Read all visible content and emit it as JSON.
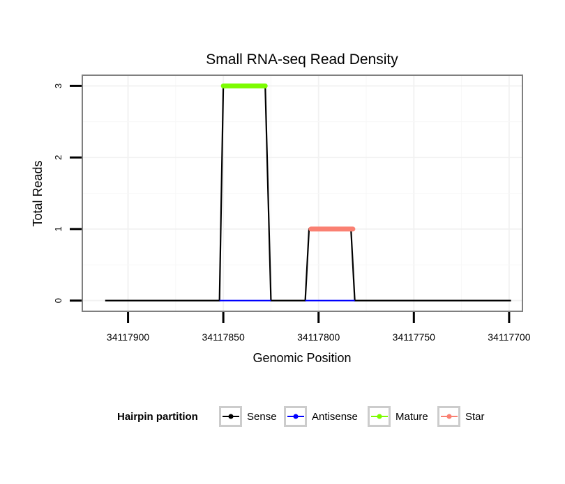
{
  "chart_data": {
    "type": "line",
    "title": "Small RNA-seq Read Density",
    "xlabel": "Genomic Position",
    "ylabel": "Total Reads",
    "x_reversed": true,
    "xlim": [
      34117924,
      34117693
    ],
    "ylim": [
      -0.15,
      3.15
    ],
    "x_ticks": [
      34117900,
      34117850,
      34117800,
      34117750,
      34117700
    ],
    "x_tick_labels": [
      "34117900",
      "34117850",
      "34117800",
      "34117750",
      "34117700"
    ],
    "y_ticks": [
      0,
      1,
      2,
      3
    ],
    "y_tick_labels": [
      "0",
      "1",
      "2",
      "3"
    ],
    "grid": true,
    "legend_position": "bottom",
    "legend_title": "Hairpin partition",
    "series": [
      {
        "name": "Sense",
        "color": "#000000",
        "x": [
          34117912,
          34117852,
          34117850,
          34117828,
          34117825,
          34117807,
          34117805,
          34117783,
          34117781,
          34117699
        ],
        "y": [
          0,
          0,
          3,
          3,
          0,
          0,
          1,
          1,
          0,
          0
        ]
      },
      {
        "name": "Antisense",
        "color": "#0000ff",
        "x": [
          34117852,
          34117825,
          34117807,
          34117781
        ],
        "y": [
          0,
          0,
          0,
          0
        ],
        "segments": [
          [
            0,
            1
          ],
          [
            2,
            3
          ]
        ]
      },
      {
        "name": "Mature",
        "color": "#7cfc00",
        "x": [
          34117850,
          34117828
        ],
        "y": [
          3,
          3
        ]
      },
      {
        "name": "Star",
        "color": "#fa8072",
        "x": [
          34117804,
          34117782
        ],
        "y": [
          1,
          1
        ]
      }
    ]
  },
  "legend_items": [
    {
      "label": "Sense",
      "color": "#000000"
    },
    {
      "label": "Antisense",
      "color": "#0000ff"
    },
    {
      "label": "Mature",
      "color": "#7cfc00"
    },
    {
      "label": "Star",
      "color": "#fa8072"
    }
  ]
}
